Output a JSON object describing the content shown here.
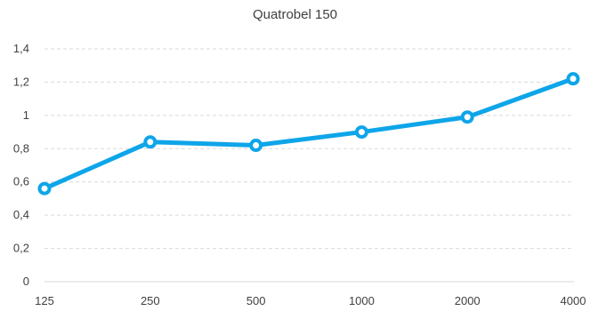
{
  "chart_data": {
    "type": "line",
    "title": "Quatrobel 150",
    "xlabel": "",
    "ylabel": "",
    "categories": [
      "125",
      "250",
      "500",
      "1000",
      "2000",
      "4000"
    ],
    "series": [
      {
        "values": [
          0.56,
          0.84,
          0.82,
          0.9,
          0.99,
          1.22
        ]
      }
    ],
    "ylim": [
      0,
      1.4
    ],
    "yticks": [
      0,
      0.2,
      0.4,
      0.6,
      0.8,
      1,
      1.2,
      1.4
    ],
    "ytick_labels": [
      "0",
      "0,2",
      "0,4",
      "0,6",
      "0,8",
      "1",
      "1,2",
      "1,4"
    ],
    "grid": true,
    "colors": {
      "series": "#0ea5e9",
      "grid": "#d9d9d9",
      "text": "#404040"
    }
  }
}
